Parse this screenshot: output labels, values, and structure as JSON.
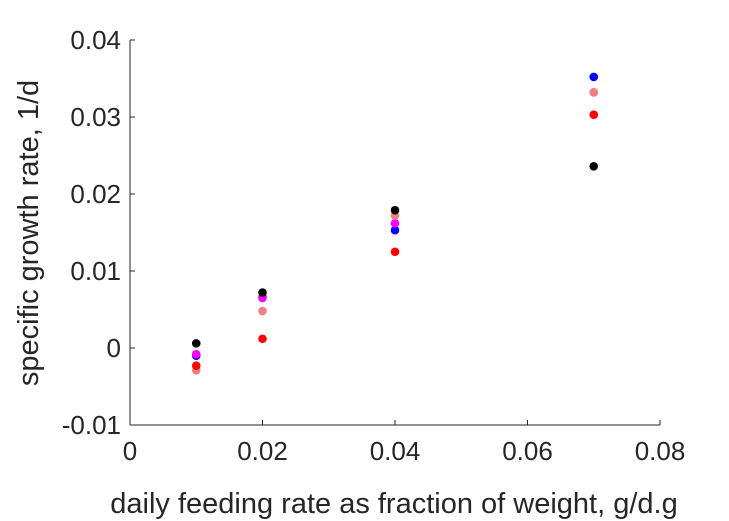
{
  "chart_data": {
    "type": "scatter",
    "title": "",
    "xlabel": "daily feeding rate as fraction of weight, g/d.g",
    "ylabel": "specific growth rate, 1/d",
    "xlim": [
      0,
      0.08
    ],
    "ylim": [
      -0.01,
      0.04
    ],
    "x_ticks": [
      "0",
      "0.02",
      "0.04",
      "0.06",
      "0.08"
    ],
    "y_ticks": [
      "-0.01",
      "0",
      "0.01",
      "0.02",
      "0.03",
      "0.04"
    ],
    "grid": false,
    "series": [
      {
        "color": "#0000ff",
        "x": [
          0.01,
          0.02,
          0.04,
          0.07
        ],
        "y": [
          -0.001,
          0.0066,
          0.0153,
          0.0352
        ]
      },
      {
        "color": "#ff00ff",
        "x": [
          0.01,
          0.02,
          0.04,
          0.07
        ],
        "y": [
          -0.0008,
          0.0065,
          0.0162,
          0.0332
        ]
      },
      {
        "color": "#f08080",
        "x": [
          0.01,
          0.02,
          0.04,
          0.07
        ],
        "y": [
          -0.0029,
          0.0048,
          0.0172,
          0.0332
        ]
      },
      {
        "color": "#ff0000",
        "x": [
          0.01,
          0.02,
          0.04,
          0.07
        ],
        "y": [
          -0.0023,
          0.0012,
          0.0125,
          0.0303
        ]
      },
      {
        "color": "#000000",
        "x": [
          0.01,
          0.02,
          0.04,
          0.07
        ],
        "y": [
          0.0006,
          0.0072,
          0.0179,
          0.0236
        ]
      }
    ]
  }
}
